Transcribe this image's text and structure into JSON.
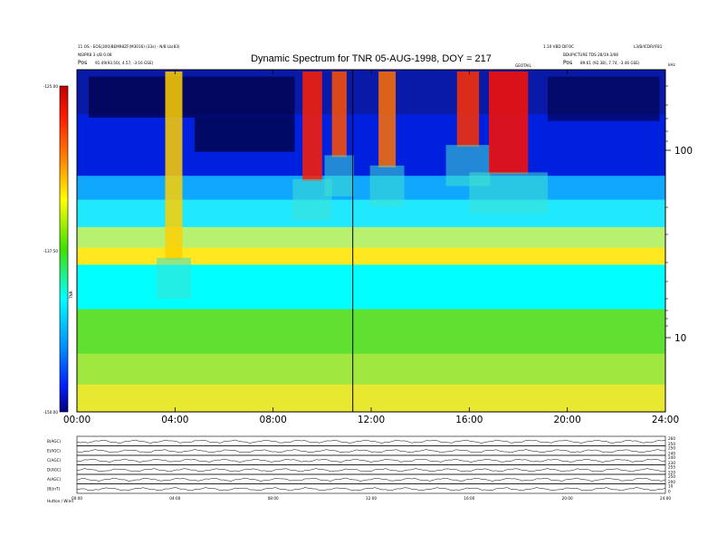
{
  "header": {
    "line1_left": "11 OS - EOS(300)BEM98ZF(M3016) (33s) - N/B Lb(83)",
    "line2_left": "NSIPR8 3 s/B 0.08",
    "pos_label": "Pos",
    "pos_left": "91.49(93.50), 4.57, -3.16 GSE)",
    "line1_right": "1.10 VBD DIFOC",
    "line1_right2": "L3/B/ICDR/IF81",
    "line2_right": "BDUPICTURE TDS 28/19.3/08",
    "pos_right": "89.61 (92.38), 7.74, -3.46 GSE)",
    "freq_unit": "kHz",
    "marker_text": "GEOTAIL"
  },
  "chart_data": {
    "type": "heatmap",
    "title": "Dynamic Spectrum for TNR 05-AUG-1998, DOY = 217",
    "colorbar": {
      "label": "TNR",
      "ticks": [
        "-125.00",
        "-137.50",
        "-150.00"
      ],
      "colors": [
        "#c00000",
        "#ff2000",
        "#ff8000",
        "#ffff00",
        "#80ff00",
        "#00e000",
        "#00ffff",
        "#0090ff",
        "#0020ff",
        "#000080"
      ]
    },
    "x_ticks": [
      "00:00",
      "04:00",
      "08:00",
      "12:00",
      "16:00",
      "20:00",
      "24:00"
    ],
    "y_axis": {
      "scale": "log",
      "ticks": [
        "100",
        "10"
      ]
    },
    "vertical_marker_time": "11:15",
    "bands": [
      {
        "from": 0.0,
        "to": 0.13,
        "color": "#0a1aa8"
      },
      {
        "from": 0.13,
        "to": 0.31,
        "color": "#0020e0"
      },
      {
        "from": 0.31,
        "to": 0.38,
        "color": "#10a8ff"
      },
      {
        "from": 0.38,
        "to": 0.46,
        "color": "#20e8ff"
      },
      {
        "from": 0.46,
        "to": 0.52,
        "color": "#b8f070"
      },
      {
        "from": 0.52,
        "to": 0.57,
        "color": "#ffe820"
      },
      {
        "from": 0.57,
        "to": 0.7,
        "color": "#00ffff"
      },
      {
        "from": 0.7,
        "to": 0.83,
        "color": "#60e030"
      },
      {
        "from": 0.83,
        "to": 0.92,
        "color": "#a0e840"
      },
      {
        "from": 0.92,
        "to": 1.0,
        "color": "#e8e830"
      }
    ],
    "bursts": [
      {
        "t0": 3.6,
        "t1": 4.3,
        "color": "#ffd000",
        "y1": 0.55
      },
      {
        "t0": 9.2,
        "t1": 10.0,
        "color": "#ff2000",
        "y1": 0.32
      },
      {
        "t0": 10.4,
        "t1": 11.0,
        "color": "#ff5000",
        "y1": 0.25
      },
      {
        "t0": 12.3,
        "t1": 13.0,
        "color": "#ff7000",
        "y1": 0.28
      },
      {
        "t0": 15.5,
        "t1": 16.4,
        "color": "#ff3000",
        "y1": 0.22
      },
      {
        "t0": 16.8,
        "t1": 18.4,
        "color": "#ff1000",
        "y1": 0.3
      }
    ],
    "panels": [
      {
        "label": "B(AGC)",
        "right_ticks": [
          "260",
          "250"
        ]
      },
      {
        "label": "E(AGC)",
        "right_ticks": [
          "250",
          "240"
        ]
      },
      {
        "label": "C(AGC)",
        "right_ticks": [
          "240",
          "230"
        ]
      },
      {
        "label": "D(AGC)",
        "right_ticks": [
          "255",
          "220"
        ]
      },
      {
        "label": "A(AGC)",
        "right_ticks": [
          "250",
          "200"
        ]
      },
      {
        "label": "|B|(nT)",
        "right_ticks": [
          "10",
          "0"
        ]
      }
    ],
    "bottom_x_ticks": [
      "00:00",
      "04:00",
      "08:00",
      "12:00",
      "16:00",
      "20:00",
      "24:00"
    ],
    "bottom_label": "Hutton / Wind"
  }
}
